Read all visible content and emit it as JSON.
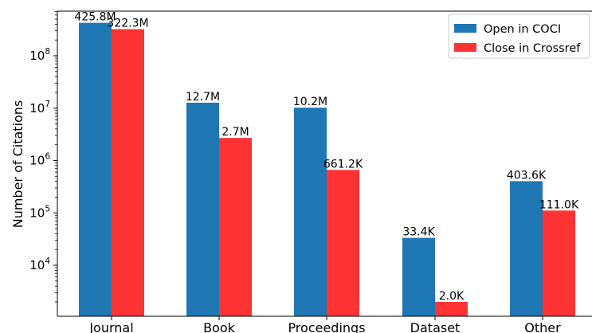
{
  "chart_data": {
    "type": "bar",
    "y_scale": "log",
    "categories": [
      "Journal",
      "Book",
      "Proceedings",
      "Dataset",
      "Other"
    ],
    "series": [
      {
        "name": "Open in COCI",
        "color": "#1f77b4",
        "values": [
          425800000,
          12700000,
          10200000,
          33400,
          403600
        ],
        "labels": [
          "425.8M",
          "12.7M",
          "10.2M",
          "33.4K",
          "403.6K"
        ]
      },
      {
        "name": "Close in Crossref",
        "color": "#ff3333",
        "values": [
          322300000,
          2700000,
          661200,
          2000,
          111000
        ],
        "labels": [
          "322.3M",
          "2.7M",
          "661.2K",
          "2.0K",
          "111.0K"
        ]
      }
    ],
    "title": "",
    "xlabel": "",
    "ylabel": "Number of Citations",
    "ylim": [
      1000,
      1000000000
    ],
    "yticks": [
      {
        "base": "10",
        "exp": "4",
        "value": 10000
      },
      {
        "base": "10",
        "exp": "5",
        "value": 100000
      },
      {
        "base": "10",
        "exp": "6",
        "value": 1000000
      },
      {
        "base": "10",
        "exp": "7",
        "value": 10000000
      },
      {
        "base": "10",
        "exp": "8",
        "value": 100000000
      }
    ],
    "grid": false,
    "legend_position": "top-right"
  }
}
